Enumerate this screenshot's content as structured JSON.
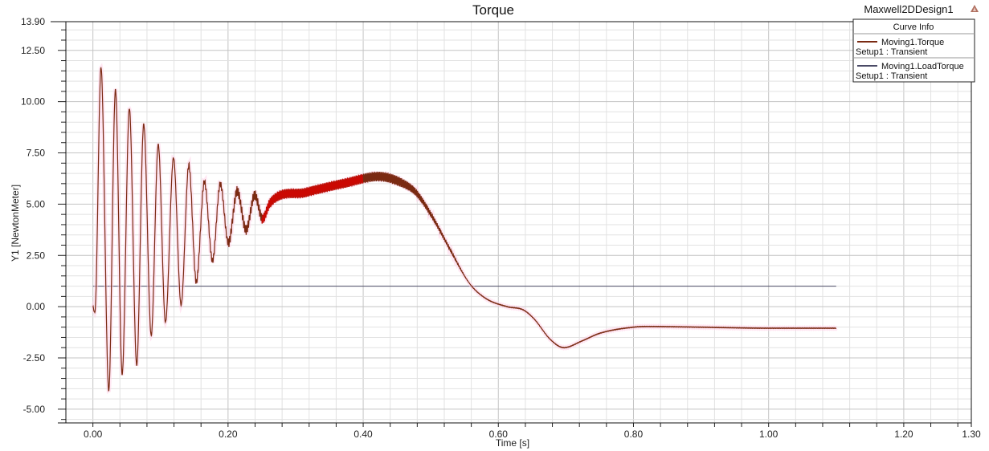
{
  "window": {
    "design_name": "Maxwell2DDesign1",
    "corner_icon": "triangle-warning-icon"
  },
  "legend": {
    "title": "Curve Info",
    "items": [
      {
        "name": "Moving1.Torque",
        "setup": "Setup1 : Transient",
        "color": "#7a2a12"
      },
      {
        "name": "Moving1.LoadTorque",
        "setup": "Setup1 : Transient",
        "color": "#4a4a66"
      }
    ]
  },
  "chart_data": {
    "type": "line",
    "title": "Torque",
    "xlabel": "Time [s]",
    "ylabel": "Y1 [NewtonMeter]",
    "xlim": [
      -0.04,
      1.3
    ],
    "ylim": [
      -5.67,
      13.9
    ],
    "x_ticks": [
      "0.00",
      "0.20",
      "0.40",
      "0.60",
      "0.80",
      "1.00",
      "1.20",
      "1.30"
    ],
    "y_ticks": [
      "13.90",
      "12.50",
      "10.00",
      "7.50",
      "5.00",
      "2.50",
      "0.00",
      "-2.50",
      "-5.00"
    ],
    "grid": true,
    "legend_position": "top-right",
    "series": [
      {
        "name": "Moving1.Torque",
        "color": "#7a2a12",
        "ripple_color": "#e00000",
        "ripple_amplitude": 0.3,
        "x": [
          0.0,
          0.004,
          0.012,
          0.0235,
          0.0334,
          0.0433,
          0.054,
          0.0648,
          0.0752,
          0.0863,
          0.0967,
          0.1074,
          0.1193,
          0.1305,
          0.142,
          0.153,
          0.165,
          0.177,
          0.1885,
          0.2005,
          0.2136,
          0.2267,
          0.2395,
          0.251,
          0.262,
          0.315,
          0.375,
          0.4225,
          0.455,
          0.478,
          0.502,
          0.526,
          0.557,
          0.581,
          0.613,
          0.637,
          0.653,
          0.677,
          0.697,
          0.724,
          0.75,
          0.8,
          0.82,
          0.9,
          1.0,
          1.1
        ],
        "y": [
          -0.03,
          0.2,
          11.67,
          -4.09,
          10.59,
          -3.3,
          9.67,
          -2.85,
          8.9,
          -1.41,
          7.91,
          -0.76,
          7.26,
          0.09,
          6.9,
          1.2,
          6.09,
          2.24,
          6.0,
          3.09,
          5.64,
          3.74,
          5.45,
          4.28,
          5.05,
          5.57,
          6.04,
          6.35,
          6.07,
          5.57,
          4.4,
          2.95,
          1.15,
          0.41,
          0.0,
          -0.16,
          -0.6,
          -1.6,
          -2.0,
          -1.67,
          -1.3,
          -1.0,
          -0.97,
          -1.0,
          -1.05,
          -1.05
        ]
      },
      {
        "name": "Moving1.LoadTorque",
        "color": "#4a4a66",
        "x": [
          0.0,
          1.1
        ],
        "y": [
          1.0,
          1.0
        ]
      }
    ]
  }
}
